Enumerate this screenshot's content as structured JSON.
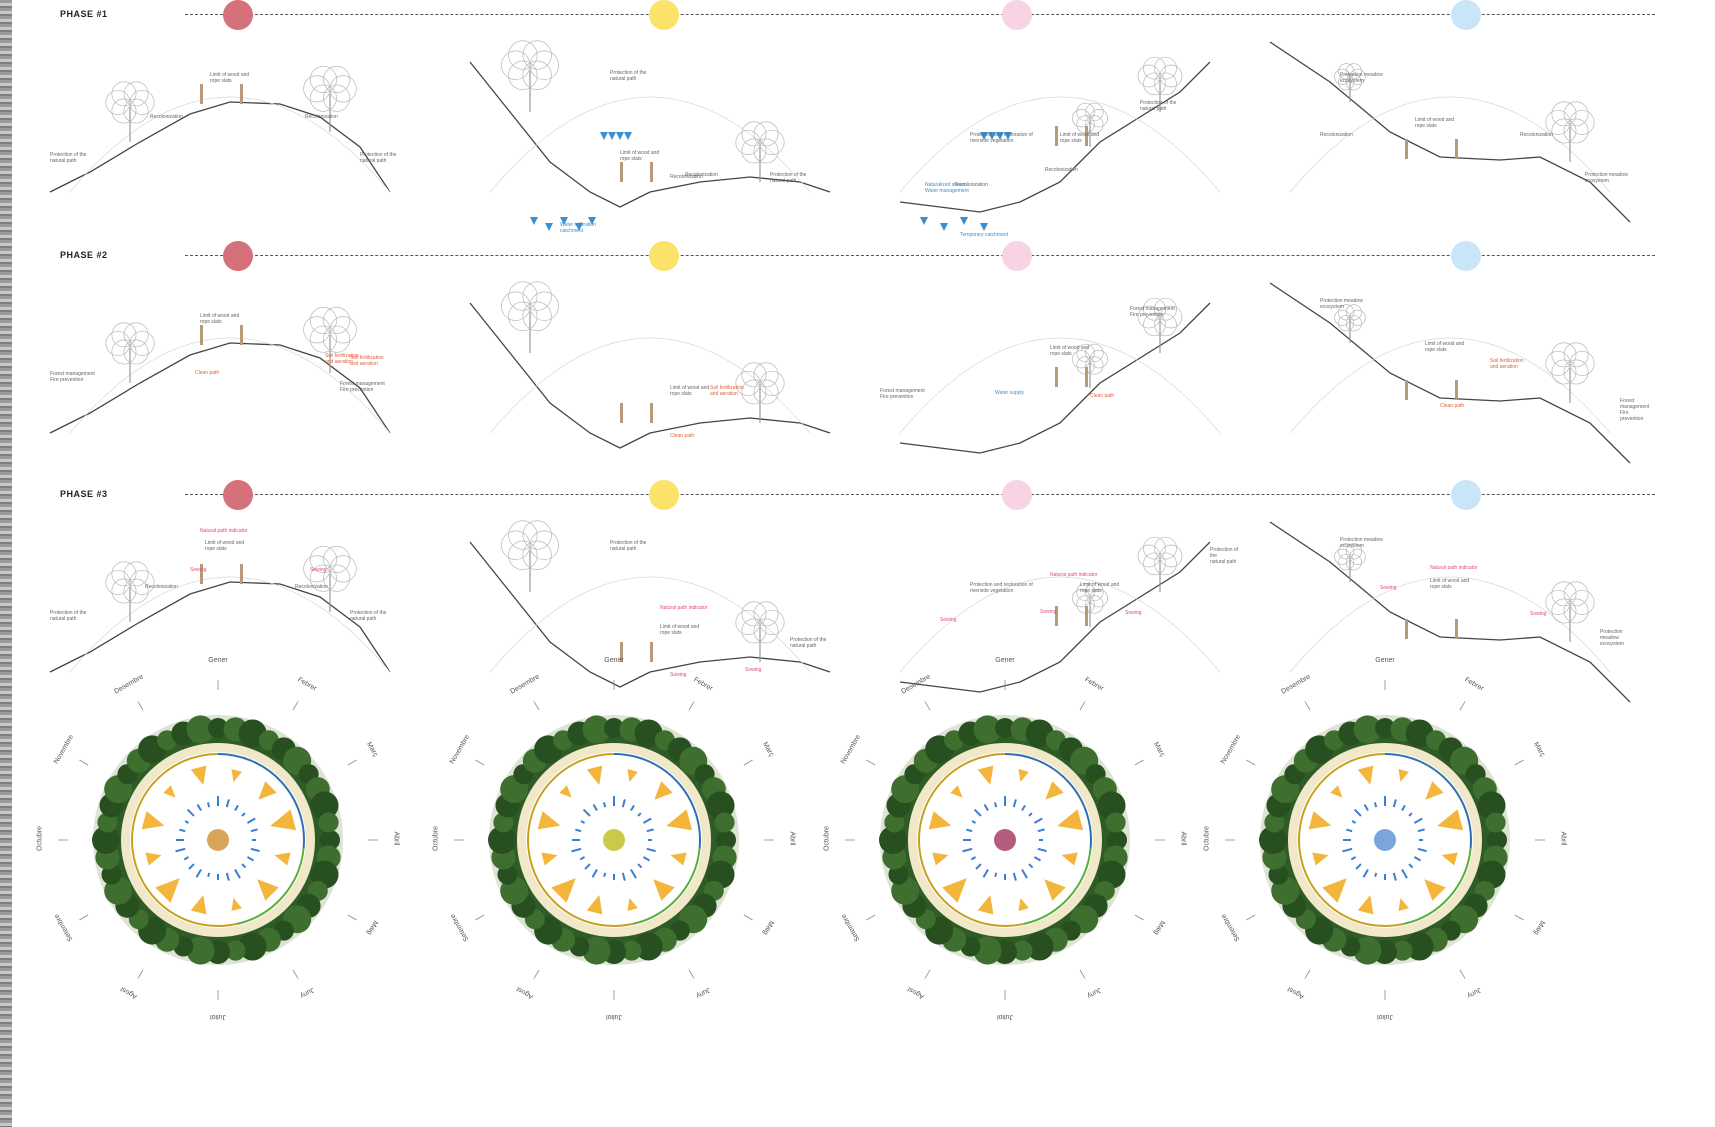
{
  "colors": {
    "red": "#d4717a",
    "yellow": "#fbe36a",
    "pink": "#f7d3e3",
    "blue": "#c8e6f7",
    "annot_red": "#e06040",
    "annot_pink": "#e04880",
    "water": "#3a8fd0"
  },
  "phases": [
    {
      "label": "PHASE #1",
      "panels": [
        {
          "labels": [
            {
              "text": "Limit of wood and\nrope slats",
              "style": ""
            },
            {
              "text": "Recolonization",
              "style": ""
            },
            {
              "text": "Recolonization",
              "style": ""
            },
            {
              "text": "Protection of the\nnatural path",
              "style": ""
            },
            {
              "text": "Protection of the\nnatural path",
              "style": ""
            }
          ]
        },
        {
          "labels": [
            {
              "text": "Protection of the\nnatural path",
              "style": ""
            },
            {
              "text": "Limit of wood and\nrope slats",
              "style": ""
            },
            {
              "text": "Recolonization",
              "style": ""
            },
            {
              "text": "Recolonization",
              "style": ""
            },
            {
              "text": "Protection of the\nnatural path",
              "style": ""
            },
            {
              "text": "Water infiltration\ncatchment",
              "style": "blue"
            }
          ]
        },
        {
          "labels": [
            {
              "text": "Protection and restoration of\nriverside vegetation",
              "style": ""
            },
            {
              "text": "Limit of wood and\nrope slats",
              "style": ""
            },
            {
              "text": "Recolonization",
              "style": ""
            },
            {
              "text": "Recolonization",
              "style": ""
            },
            {
              "text": "Protection of the\nnatural path",
              "style": ""
            },
            {
              "text": "Naturalized stream\nWater management",
              "style": "blue"
            },
            {
              "text": "Temporary catchment",
              "style": "blue"
            }
          ]
        },
        {
          "labels": [
            {
              "text": "Protection meadow\necosystem",
              "style": ""
            },
            {
              "text": "Limit of wood and\nrope slats",
              "style": ""
            },
            {
              "text": "Recolonization",
              "style": ""
            },
            {
              "text": "Recolonization",
              "style": ""
            },
            {
              "text": "Protection meadow\necosystem",
              "style": ""
            }
          ]
        }
      ]
    },
    {
      "label": "PHASE #2",
      "panels": [
        {
          "labels": [
            {
              "text": "Limit of wood and\nrope slats",
              "style": ""
            },
            {
              "text": "Soil fertilization\nand aeration",
              "style": "red"
            },
            {
              "text": "Soil fertilization\nand aeration",
              "style": "red"
            },
            {
              "text": "Clean path",
              "style": "red"
            },
            {
              "text": "Forest management\nFire prevention",
              "style": ""
            },
            {
              "text": "Forest management\nFire prevention",
              "style": ""
            }
          ]
        },
        {
          "labels": [
            {
              "text": "Limit of wood and\nrope slats",
              "style": ""
            },
            {
              "text": "Soil fertilization\nand aeration",
              "style": "red"
            },
            {
              "text": "Clean path",
              "style": "red"
            }
          ]
        },
        {
          "labels": [
            {
              "text": "Forest management\nFire prevention",
              "style": ""
            },
            {
              "text": "Limit of wood and\nrope slats",
              "style": ""
            },
            {
              "text": "Forest management\nFire prevention",
              "style": ""
            },
            {
              "text": "Water supply",
              "style": "blue"
            },
            {
              "text": "Clean path",
              "style": "red"
            }
          ]
        },
        {
          "labels": [
            {
              "text": "Protection meadow\necosystem",
              "style": ""
            },
            {
              "text": "Limit of wood and\nrope slats",
              "style": ""
            },
            {
              "text": "Soil fertilization\nand aeration",
              "style": "red"
            },
            {
              "text": "Clean path",
              "style": "red"
            },
            {
              "text": "Forest management\nFire prevention",
              "style": ""
            }
          ]
        }
      ]
    },
    {
      "label": "PHASE #3",
      "panels": [
        {
          "labels": [
            {
              "text": "Natural path indicator",
              "style": "pink"
            },
            {
              "text": "Limit of wood and\nrope slats",
              "style": ""
            },
            {
              "text": "Sowing",
              "style": "pink"
            },
            {
              "text": "Sowing",
              "style": "pink"
            },
            {
              "text": "Recolonization",
              "style": ""
            },
            {
              "text": "Recolonization",
              "style": ""
            },
            {
              "text": "Protection of the\nnatural path",
              "style": ""
            },
            {
              "text": "Protection of the\nnatural path",
              "style": ""
            }
          ]
        },
        {
          "labels": [
            {
              "text": "Protection of the\nnatural path",
              "style": ""
            },
            {
              "text": "Natural path indicator",
              "style": "pink"
            },
            {
              "text": "Limit of wood and\nrope slats",
              "style": ""
            },
            {
              "text": "Sowing",
              "style": "pink"
            },
            {
              "text": "Sowing",
              "style": "pink"
            },
            {
              "text": "Protection of the\nnatural path",
              "style": ""
            }
          ]
        },
        {
          "labels": [
            {
              "text": "Protection and restoration of\nriverside vegetation",
              "style": ""
            },
            {
              "text": "Natural path indicator",
              "style": "pink"
            },
            {
              "text": "Limit of wood and\nrope slats",
              "style": ""
            },
            {
              "text": "Sowing",
              "style": "pink"
            },
            {
              "text": "Sowing",
              "style": "pink"
            },
            {
              "text": "Sowing",
              "style": "pink"
            },
            {
              "text": "Protection of the\nnatural path",
              "style": ""
            }
          ]
        },
        {
          "labels": [
            {
              "text": "Protection meadow\necosystem",
              "style": ""
            },
            {
              "text": "Natural path indicator",
              "style": "pink"
            },
            {
              "text": "Limit of wood and\nrope slats",
              "style": ""
            },
            {
              "text": "Sowing",
              "style": "pink"
            },
            {
              "text": "Sowing",
              "style": "pink"
            },
            {
              "text": "Protection meadow\necosystem",
              "style": ""
            }
          ]
        }
      ]
    }
  ],
  "wheels": [
    {
      "center_color": "#d9a55a"
    },
    {
      "center_color": "#c9c94a"
    },
    {
      "center_color": "#b55b7e"
    },
    {
      "center_color": "#7aa6db"
    }
  ],
  "months": [
    "Gener",
    "Febrer",
    "Març",
    "Abril",
    "Maig",
    "Juny",
    "Juliol",
    "Agost",
    "Setembre",
    "Octubre",
    "Novembre",
    "Desembre"
  ]
}
